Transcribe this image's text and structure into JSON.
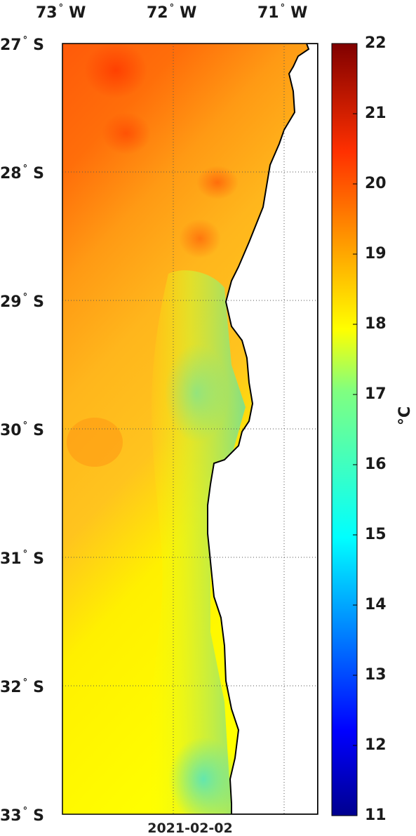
{
  "map": {
    "lon_labels": [
      {
        "deg": "73",
        "hemi": "W",
        "lon": -73
      },
      {
        "deg": "72",
        "hemi": "W",
        "lon": -72
      },
      {
        "deg": "71",
        "hemi": "W",
        "lon": -71
      }
    ],
    "lat_labels": [
      {
        "deg": "27",
        "hemi": "S",
        "lat": -27
      },
      {
        "deg": "28",
        "hemi": "S",
        "lat": -28
      },
      {
        "deg": "29",
        "hemi": "S",
        "lat": -29
      },
      {
        "deg": "30",
        "hemi": "S",
        "lat": -30
      },
      {
        "deg": "31",
        "hemi": "S",
        "lat": -31
      },
      {
        "deg": "32",
        "hemi": "S",
        "lat": -32
      },
      {
        "deg": "33",
        "hemi": "S",
        "lat": -33
      }
    ],
    "degree_symbol": "°",
    "date": "2021-02-02",
    "land_color": "#ffffff",
    "coast_color": "#000000",
    "colorbar": {
      "min": 11,
      "max": 22,
      "ticks": [
        "22",
        "21",
        "20",
        "19",
        "18",
        "17",
        "16",
        "15",
        "14",
        "13",
        "12",
        "11"
      ],
      "unit_label": "°C",
      "colormap": "jet"
    }
  }
}
